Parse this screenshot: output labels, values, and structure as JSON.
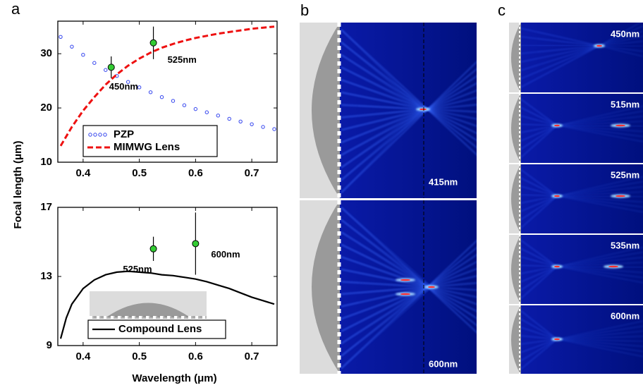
{
  "panel_labels": [
    "a",
    "b",
    "c"
  ],
  "chart_data": [
    {
      "type": "line",
      "y_label": "Focal length (μm)",
      "legend": "lower left",
      "xlim": [
        0.355,
        0.745
      ],
      "xticks": [
        0.4,
        0.5,
        0.6,
        0.7
      ],
      "ylim": [
        10,
        36
      ],
      "yticks": [
        10,
        20,
        30
      ],
      "series": [
        {
          "name": "PZP",
          "color": "#3344ee",
          "line_style": "markers",
          "x": [
            0.36,
            0.38,
            0.4,
            0.42,
            0.44,
            0.46,
            0.48,
            0.5,
            0.52,
            0.54,
            0.56,
            0.58,
            0.6,
            0.62,
            0.64,
            0.66,
            0.68,
            0.7,
            0.72,
            0.74
          ],
          "values": [
            33.1,
            31.3,
            29.8,
            28.3,
            27.0,
            25.9,
            24.8,
            23.8,
            22.9,
            22.0,
            21.3,
            20.5,
            19.8,
            19.2,
            18.6,
            18.0,
            17.5,
            17.0,
            16.5,
            16.1
          ]
        },
        {
          "name": "MIMWG Lens",
          "color": "#ee1111",
          "line_style": "dashed",
          "x": [
            0.36,
            0.38,
            0.4,
            0.42,
            0.44,
            0.46,
            0.48,
            0.5,
            0.52,
            0.54,
            0.56,
            0.58,
            0.6,
            0.62,
            0.64,
            0.66,
            0.68,
            0.7,
            0.72,
            0.74
          ],
          "values": [
            13,
            16.5,
            19.5,
            22,
            24.3,
            26.2,
            27.8,
            29.1,
            30.2,
            31.1,
            31.8,
            32.4,
            32.9,
            33.3,
            33.7,
            34.0,
            34.3,
            34.6,
            34.8,
            35
          ]
        },
        {
          "color": "#33cc33",
          "line_style": "points",
          "x": [
            0.45,
            0.525
          ],
          "values": [
            27.5,
            32
          ],
          "errors": [
            2,
            3
          ],
          "point_labels": [
            "450nm",
            "525nm"
          ]
        }
      ]
    },
    {
      "type": "line",
      "x_label": "Wavelength (μm)",
      "legend": "lower left",
      "xlim": [
        0.355,
        0.745
      ],
      "xticks": [
        0.4,
        0.5,
        0.6,
        0.7
      ],
      "ylim": [
        9,
        17
      ],
      "yticks": [
        9,
        13,
        17
      ],
      "series": [
        {
          "name": "Compound Lens",
          "color": "#000000",
          "line_style": "solid",
          "x": [
            0.36,
            0.37,
            0.38,
            0.4,
            0.42,
            0.44,
            0.46,
            0.48,
            0.5,
            0.52,
            0.54,
            0.56,
            0.58,
            0.6,
            0.62,
            0.64,
            0.66,
            0.68,
            0.7,
            0.72,
            0.74
          ],
          "values": [
            9.4,
            10.6,
            11.4,
            12.3,
            12.8,
            13.1,
            13.25,
            13.3,
            13.25,
            13.2,
            13.1,
            13.05,
            12.95,
            12.85,
            12.7,
            12.5,
            12.3,
            12.05,
            11.8,
            11.6,
            11.4
          ]
        },
        {
          "color": "#33cc33",
          "line_style": "points",
          "x": [
            0.525,
            0.6
          ],
          "values": [
            14.6,
            14.9
          ],
          "errors": [
            0.7,
            1.8
          ],
          "point_labels": [
            "525nm",
            "600nm"
          ]
        }
      ]
    }
  ],
  "panel_b": {
    "wavelengths": [
      "415nm",
      "600nm"
    ]
  },
  "panel_c": {
    "wavelengths": [
      "450nm",
      "515nm",
      "525nm",
      "535nm",
      "600nm"
    ]
  }
}
